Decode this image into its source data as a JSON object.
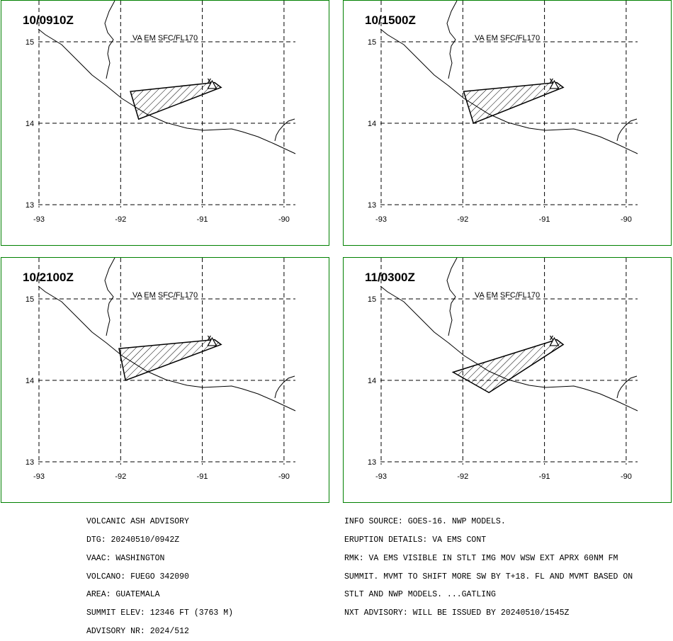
{
  "panels": [
    {
      "time": "10/0910Z",
      "level": "VA EM SFC/FL170",
      "ash_polygon_lonlat": [
        [
          -91.88,
          14.39
        ],
        [
          -90.85,
          14.5
        ],
        [
          -90.77,
          14.44
        ],
        [
          -91.78,
          14.05
        ]
      ]
    },
    {
      "time": "10/1500Z",
      "level": "VA EM SFC/FL170",
      "ash_polygon_lonlat": [
        [
          -91.99,
          14.39
        ],
        [
          -90.85,
          14.5
        ],
        [
          -90.77,
          14.44
        ],
        [
          -91.87,
          14.0
        ]
      ]
    },
    {
      "time": "10/2100Z",
      "level": "VA EM SFC/FL170",
      "ash_polygon_lonlat": [
        [
          -92.02,
          14.39
        ],
        [
          -90.85,
          14.5
        ],
        [
          -90.77,
          14.44
        ],
        [
          -91.94,
          14.0
        ]
      ]
    },
    {
      "time": "11/0300Z",
      "level": "VA EM SFC/FL170",
      "ash_polygon_lonlat": [
        [
          -92.12,
          14.1
        ],
        [
          -90.85,
          14.5
        ],
        [
          -90.77,
          14.44
        ],
        [
          -91.68,
          13.85
        ]
      ]
    }
  ],
  "volcano_lonlat": [
    -90.88,
    14.47
  ],
  "lon_ticks": [
    "-93",
    "-92",
    "-91",
    "-90"
  ],
  "lat_ticks": [
    "15",
    "14",
    "13"
  ],
  "colors": {
    "border": "#008000",
    "lines": "#000000"
  },
  "advisory_left": [
    "VOLCANIC ASH ADVISORY",
    "DTG: 20240510/0942Z",
    "VAAC: WASHINGTON",
    "VOLCANO: FUEGO 342090",
    "AREA: GUATEMALA",
    "SUMMIT ELEV: 12346 FT (3763 M)",
    "ADVISORY NR: 2024/512"
  ],
  "advisory_right": [
    "INFO SOURCE: GOES-16. NWP MODELS.",
    "ERUPTION DETAILS: VA EMS CONT",
    "RMK: VA EMS VISIBLE IN STLT IMG MOV WSW EXT APRX 60NM FM",
    "SUMMIT. MVMT TO SHIFT MORE SW BY T+18. FL AND MVMT BASED ON",
    "STLT AND NWP MODELS. ...GATLING",
    "NXT ADVISORY: WILL BE ISSUED BY 20240510/1545Z"
  ]
}
